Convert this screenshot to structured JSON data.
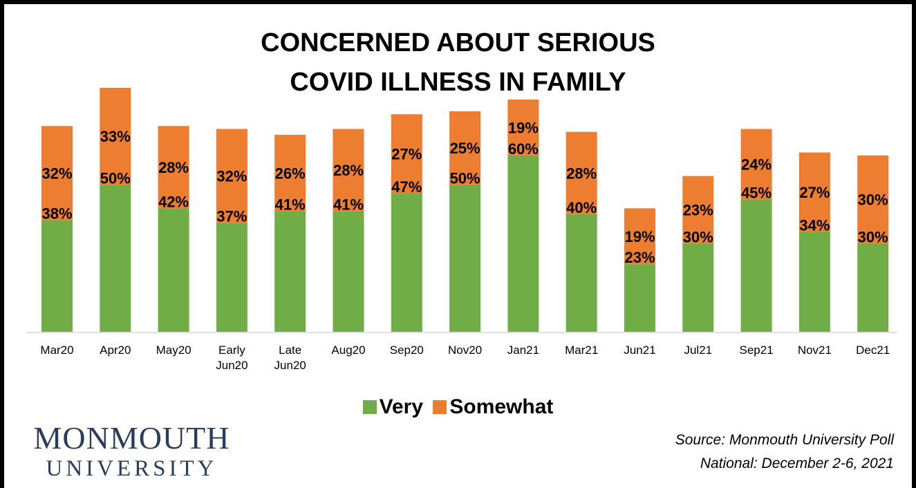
{
  "colors": {
    "very": "#70ad47",
    "somewhat": "#ed7d31"
  },
  "chart_data": {
    "type": "bar",
    "stacked": true,
    "title_lines": [
      "CONCERNED ABOUT SERIOUS",
      "COVID ILLNESS IN FAMILY"
    ],
    "categories": [
      [
        "Mar20"
      ],
      [
        "Apr20"
      ],
      [
        "May20"
      ],
      [
        "Early",
        "Jun20"
      ],
      [
        "Late",
        "Jun20"
      ],
      [
        "Aug20"
      ],
      [
        "Sep20"
      ],
      [
        "Nov20"
      ],
      [
        "Jan21"
      ],
      [
        "Mar21"
      ],
      [
        "Jun21"
      ],
      [
        "Jul21"
      ],
      [
        "Sep21"
      ],
      [
        "Nov21"
      ],
      [
        "Dec21"
      ]
    ],
    "series": [
      {
        "name": "Very",
        "values": [
          38,
          50,
          42,
          37,
          41,
          41,
          47,
          50,
          60,
          40,
          23,
          30,
          45,
          34,
          30
        ],
        "labels": [
          "38%",
          "50%",
          "42%",
          "37%",
          "41%",
          "41%",
          "47%",
          "50%",
          "60%",
          "40%",
          "23%",
          "30%",
          "45%",
          "34%",
          "30%"
        ]
      },
      {
        "name": "Somewhat",
        "values": [
          32,
          33,
          28,
          32,
          26,
          28,
          27,
          25,
          19,
          28,
          19,
          23,
          24,
          27,
          30
        ],
        "labels": [
          "32%",
          "33%",
          "28%",
          "32%",
          "26%",
          "28%",
          "27%",
          "25%",
          "19%",
          "28%",
          "19%",
          "23%",
          "24%",
          "27%",
          "30%"
        ]
      }
    ],
    "ylim": [
      0,
      80
    ],
    "gridlines": false,
    "legend_position": "bottom"
  },
  "logo": {
    "line1": "MONMOUTH",
    "line2": "UNIVERSITY"
  },
  "source": {
    "line1": "Source:  Monmouth University Poll",
    "line2": "National: December 2-6, 2021"
  }
}
